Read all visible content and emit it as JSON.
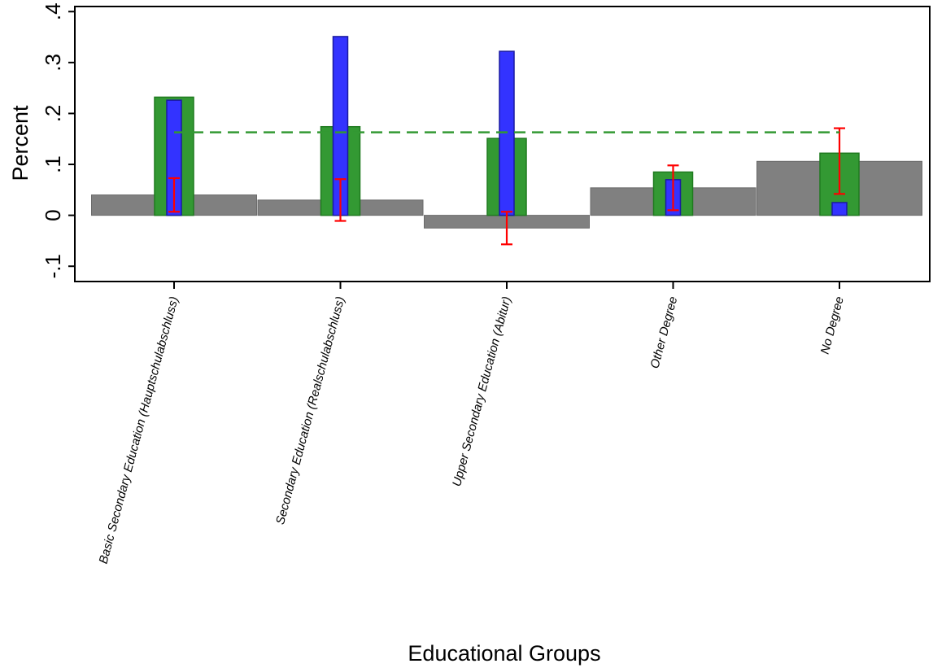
{
  "chart_data": {
    "type": "bar",
    "xlabel": "Educational Groups",
    "ylabel": "Percent",
    "ylim": [
      -0.13,
      0.41
    ],
    "yticks": [
      -0.1,
      0,
      0.1,
      0.2,
      0.3,
      0.4
    ],
    "ytick_labels": [
      "-.1",
      "0",
      ".1",
      ".2",
      ".3",
      ".4"
    ],
    "grid": false,
    "legend": "none",
    "categories": [
      "Basic Secondary Education (Hauptschulabschluss)",
      "Secondary Education (Realschulabschluss)",
      "Upper Secondary Education (Abitur)",
      "Other Degree",
      "No Degree"
    ],
    "series": [
      {
        "values": [
          0.04,
          0.03,
          -0.025,
          0.054,
          0.106
        ],
        "color": "#808080",
        "style": "wide-bar"
      },
      {
        "values": [
          0.232,
          0.174,
          0.151,
          0.085,
          0.122
        ],
        "color": "#339933",
        "style": "bar"
      },
      {
        "values": [
          0.226,
          0.351,
          0.322,
          0.07,
          0.025
        ],
        "color": "#3333ff",
        "style": "narrow-bar"
      },
      {
        "values": [
          0.041,
          0.03,
          -0.025,
          0.054,
          0.106
        ],
        "ci_low": [
          0.007,
          -0.011,
          -0.057,
          0.01,
          0.042
        ],
        "ci_high": [
          0.073,
          0.071,
          0.007,
          0.098,
          0.171
        ],
        "color": "#ff0000",
        "style": "error-bar"
      }
    ],
    "reference_line": {
      "y": 0.163,
      "x_from": "Basic Secondary Education (Hauptschulabschluss)",
      "x_to": "No Degree",
      "color": "#339933",
      "style": "dashed"
    }
  }
}
